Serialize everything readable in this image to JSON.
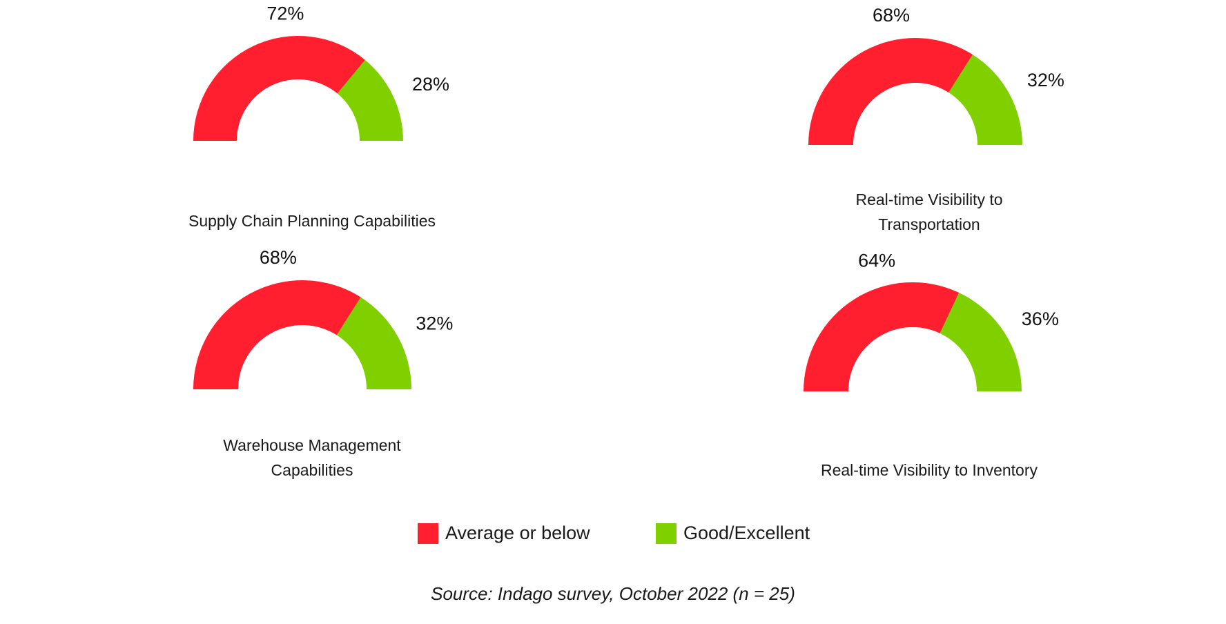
{
  "chart_data": {
    "type": "pie",
    "variant": "semi-donut",
    "series_names": [
      "Average or below",
      "Good/Excellent"
    ],
    "colors": {
      "below": "#ff1f2e",
      "good": "#80d000"
    },
    "gauges": [
      {
        "category": "Supply Chain Planning Capabilities",
        "caption_lines": [
          "Supply Chain Planning Capabilities"
        ],
        "below_label": "72%",
        "good_label": "28%",
        "below": 72,
        "good": 28
      },
      {
        "category": "Real-time Visibility to Transportation",
        "caption_lines": [
          "Real-time Visibility to",
          "Transportation"
        ],
        "below_label": "68%",
        "good_label": "32%",
        "below": 68,
        "good": 32
      },
      {
        "category": "Warehouse Management Capabilities",
        "caption_lines": [
          "Warehouse Management",
          "Capabilities"
        ],
        "below_label": "68%",
        "good_label": "32%",
        "below": 68,
        "good": 32
      },
      {
        "category": "Real-time Visibility to Inventory",
        "caption_lines": [
          "Real-time Visibility to Inventory"
        ],
        "below_label": "64%",
        "good_label": "36%",
        "below": 64,
        "good": 36
      }
    ],
    "legend": [
      {
        "label": "Average or below",
        "color": "#ff1f2e"
      },
      {
        "label": "Good/Excellent",
        "color": "#80d000"
      }
    ],
    "legend_position": "bottom",
    "source": "Source: Indago survey, October 2022 (n = 25)"
  }
}
